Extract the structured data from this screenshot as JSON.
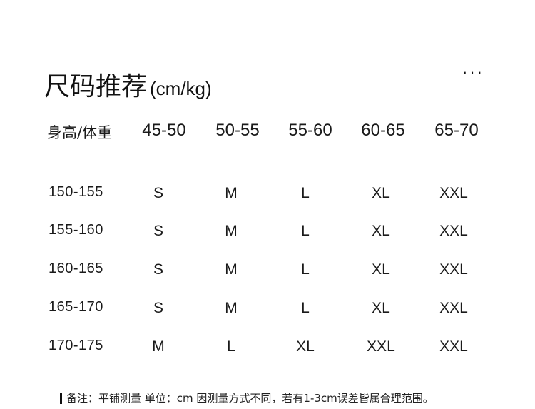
{
  "title": "尺码推荐",
  "unit": "(cm/kg)",
  "more_label": "···",
  "header": {
    "label": "身高/体重",
    "columns": [
      "45-50",
      "50-55",
      "55-60",
      "60-65",
      "65-70"
    ]
  },
  "rows": [
    {
      "height": "150-155",
      "sizes": [
        "S",
        "M",
        "L",
        "XL",
        "XXL"
      ]
    },
    {
      "height": "155-160",
      "sizes": [
        "S",
        "M",
        "L",
        "XL",
        "XXL"
      ]
    },
    {
      "height": "160-165",
      "sizes": [
        "S",
        "M",
        "L",
        "XL",
        "XXL"
      ]
    },
    {
      "height": "165-170",
      "sizes": [
        "S",
        "M",
        "L",
        "XL",
        "XXL"
      ]
    },
    {
      "height": "170-175",
      "sizes": [
        "M",
        "L",
        "XL",
        "XXL",
        "XXL"
      ]
    }
  ],
  "note": "备注：平铺测量 单位：cm 因测量方式不同，若有1-3cm误差皆属合理范围。"
}
